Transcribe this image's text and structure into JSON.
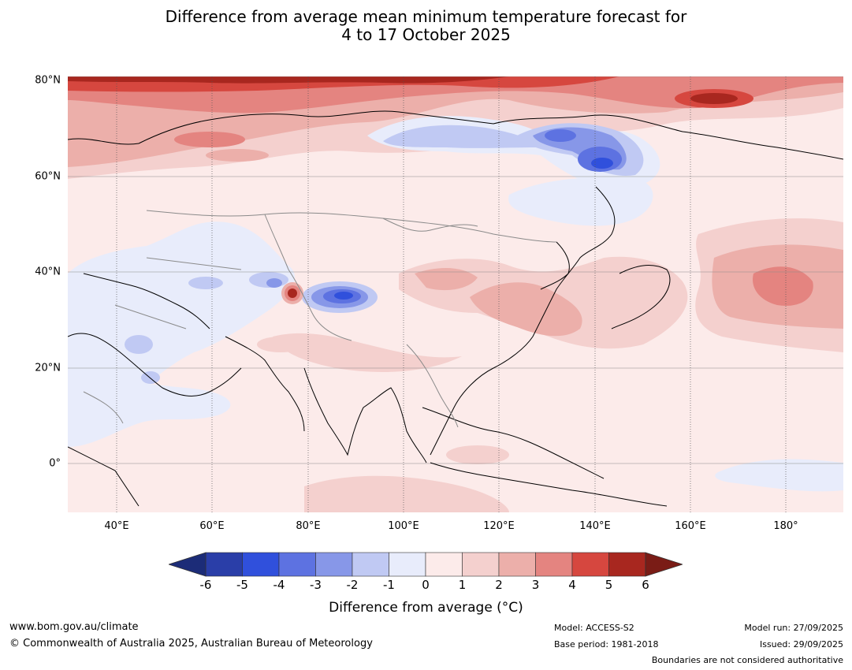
{
  "title": {
    "line1": "Difference from average mean minimum temperature forecast for",
    "line2": "4 to 17 October 2025"
  },
  "map": {
    "lat_labels": [
      "80°N",
      "60°N",
      "40°N",
      "20°N",
      "0°"
    ],
    "lon_labels": [
      "40°E",
      "60°E",
      "80°E",
      "100°E",
      "120°E",
      "140°E",
      "160°E",
      "180°"
    ],
    "lat_range": [
      -10,
      80
    ],
    "lon_range": [
      30,
      192
    ]
  },
  "colorbar": {
    "ticks": [
      "-6",
      "-5",
      "-4",
      "-3",
      "-2",
      "-1",
      "0",
      "1",
      "2",
      "3",
      "4",
      "5",
      "6"
    ],
    "colors": [
      "#2a3ea8",
      "#3050dc",
      "#5d72e1",
      "#8797e8",
      "#c0c9f3",
      "#e8ecfb",
      "#fcebea",
      "#f4d0ce",
      "#ecafaa",
      "#e48480",
      "#d6473f",
      "#a8271f"
    ],
    "under_color": "#1c2c78",
    "over_color": "#7a1c16",
    "label": "Difference from average ($^\\circ$C)",
    "label_display": "Difference from average (°C)"
  },
  "footer": {
    "website": "www.bom.gov.au/climate",
    "copyright": "© Commonwealth of Australia 2025, Australian Bureau of Meteorology",
    "model": "Model: ACCESS-S2",
    "base_period": "Base period: 1981-2018",
    "model_run": "Model run: 27/09/2025",
    "issued": "Issued: 29/09/2025",
    "disclaimer": "Boundaries are not considered authoritative"
  }
}
